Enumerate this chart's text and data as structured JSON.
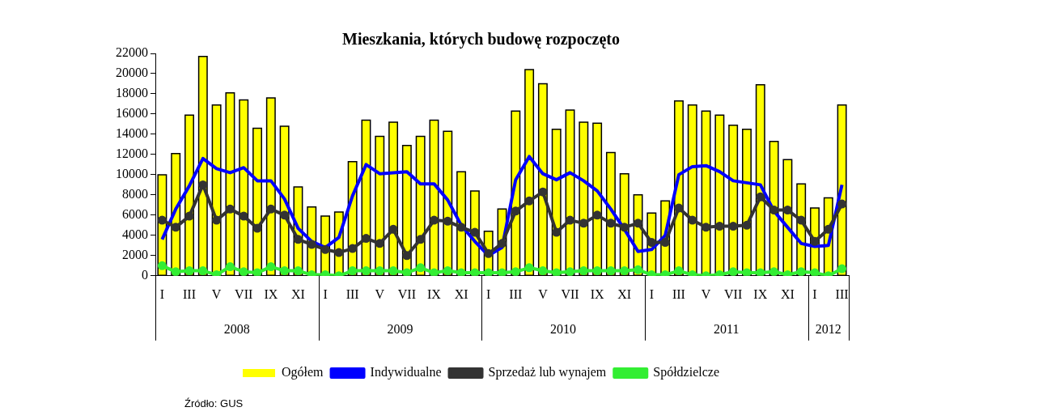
{
  "chart_data": {
    "type": "bar",
    "title": "Mieszkania, których budowę rozpoczęto",
    "categories": [
      "I",
      null,
      "III",
      null,
      "V",
      null,
      "VII",
      null,
      "IX",
      null,
      "XI",
      null,
      "I",
      null,
      "III",
      null,
      "V",
      null,
      "VII",
      null,
      "IX",
      null,
      "XI",
      null,
      "I",
      null,
      "III",
      null,
      "V",
      null,
      "VII",
      null,
      "IX",
      null,
      "XI",
      null,
      "I",
      null,
      "III",
      null,
      "V",
      null,
      "VII",
      null,
      "IX",
      null,
      "XI",
      null,
      "I",
      null,
      "III"
    ],
    "series": [
      {
        "name": "Ogółem",
        "color": "#ffff00",
        "values": [
          10000,
          12100,
          15900,
          21700,
          16900,
          18100,
          17400,
          14600,
          17600,
          14800,
          8800,
          6800,
          5900,
          6300,
          11300,
          15400,
          13800,
          15200,
          12900,
          13800,
          15400,
          14300,
          10300,
          8400,
          4400,
          6600,
          16300,
          20400,
          19000,
          14500,
          16400,
          15200,
          15100,
          12200,
          10100,
          8000,
          6200,
          7400,
          17300,
          16900,
          16300,
          15900,
          14900,
          14500,
          18900,
          13300,
          11500,
          9100,
          6700,
          7700,
          16900
        ]
      },
      {
        "name": "Indywidualne",
        "type": "line",
        "color": "#0000ff",
        "marker": "none",
        "values": [
          3600,
          6600,
          8900,
          11600,
          10600,
          10200,
          10700,
          9400,
          9400,
          7600,
          4700,
          3400,
          2800,
          3800,
          7900,
          11000,
          10100,
          10200,
          10300,
          9100,
          9100,
          7500,
          5000,
          3400,
          2000,
          2800,
          9500,
          11800,
          10100,
          9500,
          10200,
          9400,
          8400,
          6600,
          4600,
          2400,
          2600,
          4000,
          10000,
          10800,
          10900,
          10300,
          9400,
          9200,
          9000,
          6400,
          4800,
          3200,
          2900,
          3000,
          9000
        ]
      },
      {
        "name": "Sprzedaż lub wynajem",
        "type": "line",
        "color": "#333333",
        "marker": "circle",
        "values": [
          5500,
          4800,
          5900,
          9000,
          5500,
          6600,
          5900,
          4700,
          6600,
          6000,
          3600,
          3100,
          2600,
          2300,
          2700,
          3700,
          3200,
          4600,
          2000,
          3600,
          5500,
          5400,
          4800,
          4300,
          2200,
          3200,
          6400,
          7400,
          8300,
          4300,
          5500,
          5200,
          6000,
          5200,
          4800,
          5200,
          3300,
          3300,
          6700,
          5500,
          4800,
          4900,
          4900,
          5000,
          7800,
          6500,
          6500,
          5500,
          3400,
          4600,
          7100
        ]
      },
      {
        "name": "Spółdzielcze",
        "type": "line",
        "color": "#33ee33",
        "marker": "circle",
        "values": [
          1000,
          400,
          500,
          500,
          100,
          900,
          400,
          300,
          900,
          500,
          500,
          100,
          100,
          0,
          500,
          500,
          500,
          500,
          300,
          800,
          300,
          500,
          300,
          300,
          300,
          300,
          400,
          800,
          500,
          300,
          400,
          500,
          500,
          500,
          500,
          600,
          100,
          100,
          500,
          100,
          0,
          100,
          400,
          300,
          300,
          400,
          100,
          400,
          300,
          0,
          700
        ]
      }
    ],
    "ylim": [
      0,
      22000
    ],
    "yticks": [
      0,
      2000,
      4000,
      6000,
      8000,
      10000,
      12000,
      14000,
      16000,
      18000,
      20000,
      22000
    ],
    "grid": false,
    "legend": "bottom",
    "annotations": [
      "2008",
      "2009",
      "2010",
      "2011",
      "2012",
      "Źródło: GUS"
    ]
  }
}
